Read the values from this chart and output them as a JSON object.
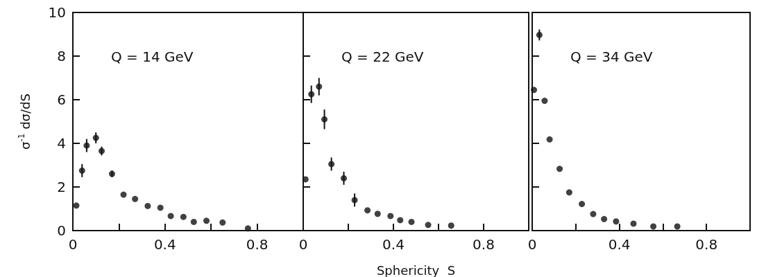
{
  "chart_data": [
    {
      "type": "scatter",
      "ylabel": "σ$^{-1}$ dσ/dS",
      "annotations": [
        "Q = 14 GeV"
      ],
      "color": "#111111",
      "marker": "circle",
      "xlim": [
        0,
        1
      ],
      "ylim": [
        0,
        10
      ],
      "xticks": [
        0,
        {
          "value": 0.2,
          "label": null
        },
        0.4,
        {
          "value": 0.6,
          "label": null
        },
        0.8,
        {
          "value": 1,
          "label": null
        }
      ],
      "yticks": [
        0,
        2,
        4,
        6,
        8,
        10
      ],
      "x": [
        0.015,
        0.04,
        0.06,
        0.1,
        0.125,
        0.17,
        0.22,
        0.27,
        0.325,
        0.38,
        0.425,
        0.48,
        0.525,
        0.58,
        0.65,
        0.76
      ],
      "values": [
        1.15,
        2.75,
        3.9,
        4.25,
        3.65,
        2.6,
        1.65,
        1.45,
        1.13,
        1.05,
        0.67,
        0.63,
        0.4,
        0.45,
        0.37,
        0.1
      ],
      "errors": [
        null,
        0.3,
        0.3,
        0.25,
        0.2,
        0.15,
        null,
        null,
        null,
        null,
        null,
        null,
        null,
        null,
        null,
        null
      ]
    },
    {
      "type": "scatter",
      "xlabel": "Sphericity  S",
      "annotations": [
        "Q = 22 GeV"
      ],
      "color": "#111111",
      "marker": "circle",
      "xlim": [
        0,
        1
      ],
      "ylim": [
        0,
        10
      ],
      "tick_labels": "x",
      "xticks": [
        0,
        {
          "value": 0.2,
          "label": null
        },
        0.4,
        {
          "value": 0.6,
          "label": null
        },
        0.8,
        {
          "value": 1,
          "label": null
        }
      ],
      "yticks": [
        {
          "value": 0,
          "label": null
        },
        {
          "value": 2,
          "label": null
        },
        {
          "value": 4,
          "label": null
        },
        {
          "value": 6,
          "label": null
        },
        {
          "value": 8,
          "label": null
        },
        {
          "value": 10,
          "label": null
        }
      ],
      "x": [
        0.01,
        0.036,
        0.07,
        0.094,
        0.125,
        0.18,
        0.228,
        0.285,
        0.33,
        0.387,
        0.43,
        0.48,
        0.554,
        0.656
      ],
      "values": [
        2.35,
        6.25,
        6.6,
        5.1,
        3.05,
        2.4,
        1.4,
        0.93,
        0.77,
        0.67,
        0.48,
        0.4,
        0.26,
        0.23
      ],
      "errors": [
        null,
        0.4,
        0.4,
        0.45,
        0.3,
        0.3,
        0.3,
        null,
        null,
        null,
        null,
        null,
        null,
        null
      ]
    },
    {
      "type": "scatter",
      "annotations": [
        "Q = 34 GeV"
      ],
      "color": "#111111",
      "marker": "circle",
      "xlim": [
        0,
        1
      ],
      "ylim": [
        0,
        10
      ],
      "tick_labels": "x",
      "xticks": [
        0,
        {
          "value": 0.2,
          "label": null
        },
        0.4,
        {
          "value": 0.6,
          "label": null
        },
        0.8,
        {
          "value": 1,
          "label": null
        }
      ],
      "yticks": [
        {
          "value": 0,
          "label": null
        },
        {
          "value": 2,
          "label": null
        },
        {
          "value": 4,
          "label": null
        },
        {
          "value": 6,
          "label": null
        },
        {
          "value": 8,
          "label": null
        },
        {
          "value": 10,
          "label": null
        }
      ],
      "x": [
        0.008,
        0.033,
        0.057,
        0.08,
        0.126,
        0.17,
        0.228,
        0.28,
        0.33,
        0.385,
        0.465,
        0.556,
        0.666
      ],
      "values": [
        6.45,
        8.97,
        5.95,
        4.18,
        2.83,
        1.75,
        1.22,
        0.76,
        0.53,
        0.42,
        0.32,
        0.19,
        0.19
      ],
      "errors": [
        null,
        0.25,
        null,
        null,
        null,
        null,
        null,
        null,
        null,
        null,
        null,
        null,
        null
      ]
    }
  ]
}
